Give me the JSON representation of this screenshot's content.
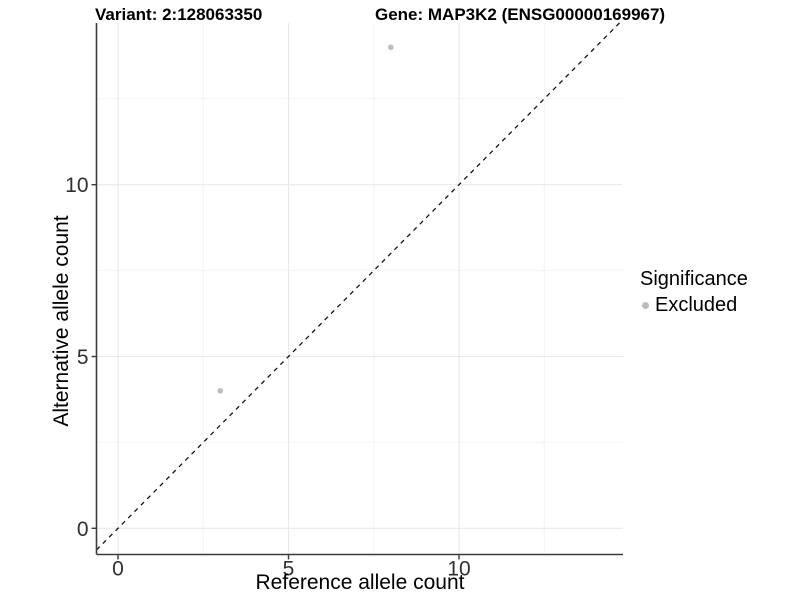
{
  "chart_data": {
    "type": "scatter",
    "titles": {
      "left": "Variant: 2:128063350",
      "right": "Gene: MAP3K2 (ENSG00000169967)"
    },
    "xlabel": "Reference allele count",
    "ylabel": "Alternative allele count",
    "x_major_ticks": [
      0,
      5,
      10
    ],
    "y_major_ticks": [
      0,
      5,
      10
    ],
    "x_minor_ticks": [
      2.5,
      7.5,
      12.5
    ],
    "y_minor_ticks": [
      2.5,
      7.5,
      12.5
    ],
    "xlim": [
      -0.63,
      14.81
    ],
    "ylim": [
      -0.76,
      14.71
    ],
    "grid": "major+minor",
    "legend_position": "right",
    "identity_line": {
      "slope": 1,
      "intercept": 0,
      "style": "dashed"
    },
    "series": [
      {
        "name": "Excluded",
        "color": "#bdbdbd",
        "points": [
          [
            3,
            4
          ],
          [
            8,
            14
          ]
        ]
      }
    ],
    "legend": {
      "title": "Significance",
      "items": [
        {
          "label": "Excluded",
          "color": "#bdbdbd"
        }
      ]
    },
    "colors": {
      "background": "#ffffff",
      "axis_line": "#3c3c3c",
      "tick_mark": "#3c3c3c",
      "tick_label": "#303030",
      "grid_major": "#e9e9e9",
      "grid_minor": "#f4f4f4",
      "identity_line": "#141414",
      "title_text": "#000000"
    }
  }
}
